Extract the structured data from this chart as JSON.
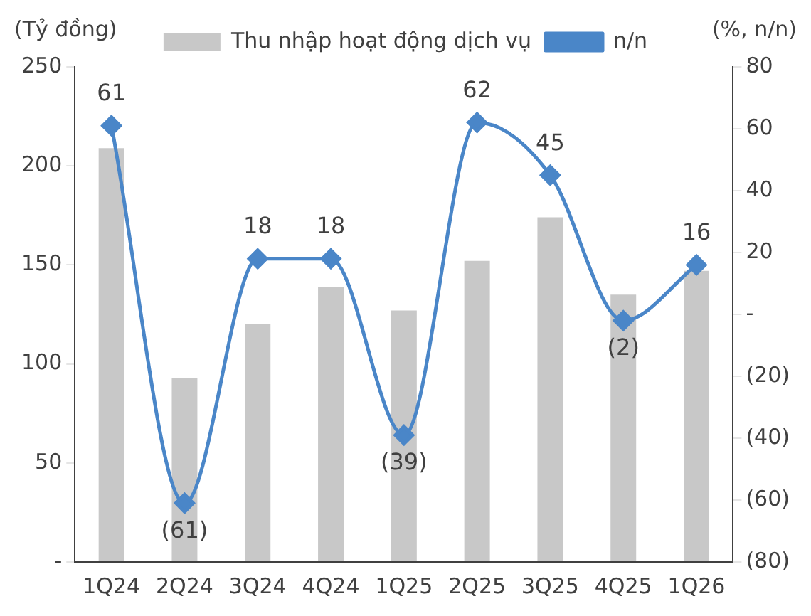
{
  "chart_data": {
    "type": "bar",
    "ylabel": "(Tỷ đồng)",
    "y2label": "(%, n/n)",
    "categories": [
      "1Q24",
      "2Q24",
      "3Q24",
      "4Q24",
      "1Q25",
      "2Q25",
      "3Q25",
      "4Q25",
      "1Q26"
    ],
    "series": [
      {
        "name": "Thu nhập hoạt động dịch vụ",
        "color": "#c8c8c8",
        "values": [
          209,
          93,
          120,
          139,
          127,
          152,
          174,
          135,
          147
        ]
      },
      {
        "name": "n/n",
        "type": "line",
        "axis": "y2",
        "color": "#4a86c8",
        "marker": "diamond",
        "values": [
          61,
          -61,
          18,
          18,
          -39,
          62,
          45,
          -2,
          16
        ],
        "value_labels": [
          "61",
          "(61)",
          "18",
          "18",
          "(39)",
          "62",
          "45",
          "(2)",
          "16"
        ]
      }
    ],
    "ylim": [
      0,
      250
    ],
    "yticks": [
      {
        "value": 0,
        "label": "-"
      },
      50,
      100,
      150,
      200,
      250
    ],
    "y2lim": [
      -80,
      80
    ],
    "y2ticks": [
      {
        "value": -80,
        "label": "(80)"
      },
      {
        "value": -60,
        "label": "(60)"
      },
      {
        "value": -40,
        "label": "(40)"
      },
      {
        "value": -20,
        "label": "(20)"
      },
      {
        "value": 0,
        "label": "-"
      },
      20,
      40,
      60,
      80
    ],
    "grid": false,
    "legend": "top"
  }
}
